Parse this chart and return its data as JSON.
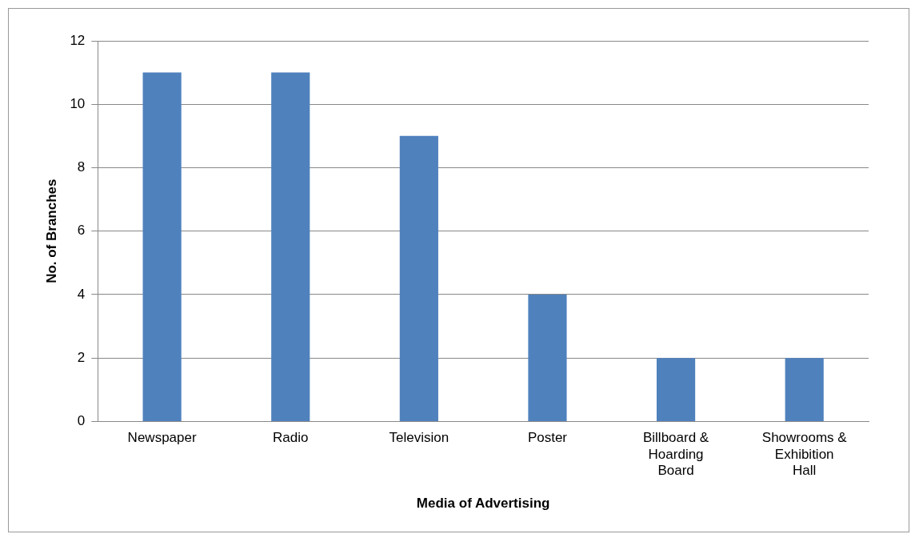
{
  "chart_data": {
    "type": "bar",
    "xlabel": "Media of Advertising",
    "ylabel": "No. of Branches",
    "categories": [
      "Newspaper",
      "Radio",
      "Television",
      "Poster",
      "Billboard & Hoarding Board",
      "Showrooms & Exhibition Hall"
    ],
    "values": [
      11,
      11,
      9,
      4,
      2,
      2
    ],
    "color": "#4f81bd",
    "ylim": [
      0,
      12
    ],
    "yticks": [
      0,
      2,
      4,
      6,
      8,
      10,
      12
    ],
    "grid": "y",
    "legend": false
  }
}
